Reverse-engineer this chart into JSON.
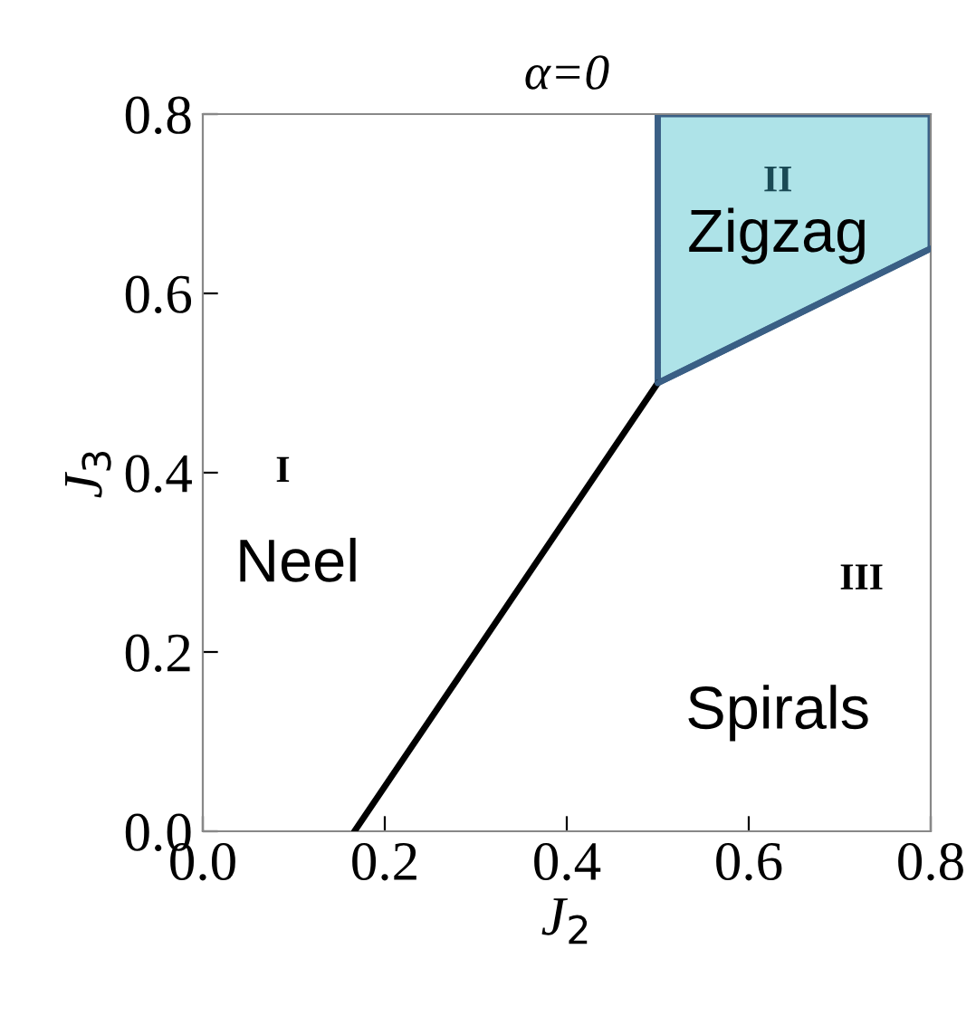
{
  "chart_data": {
    "type": "line",
    "title": "α=0",
    "xlabel": "J$_{2}$",
    "ylabel": "J$_{3}$",
    "series": [
      {
        "color": "#000000",
        "x": [
          0.1667,
          0.5
        ],
        "values": [
          0,
          0.5
        ]
      },
      {
        "type": "line",
        "color": "#3a5f85",
        "x": [
          0.5,
          0.8
        ],
        "values": [
          0.5,
          0.65
        ],
        "lower": [
          0.5,
          0.65
        ],
        "upper": [
          0.8,
          0.8
        ]
      }
    ],
    "xlim": [
      0,
      0.8
    ],
    "ylim": [
      0,
      0.8
    ],
    "xticks": [
      {
        "value": 0,
        "label": "0.0"
      },
      0.2,
      0.4,
      0.6,
      0.8
    ],
    "yticks": [
      {
        "value": 0,
        "label": "0.0"
      },
      0.2,
      0.4,
      0.6,
      0.8
    ],
    "annotations": [
      "I",
      "Neel",
      "II",
      "Zigzag",
      "III",
      "Spirals"
    ]
  }
}
